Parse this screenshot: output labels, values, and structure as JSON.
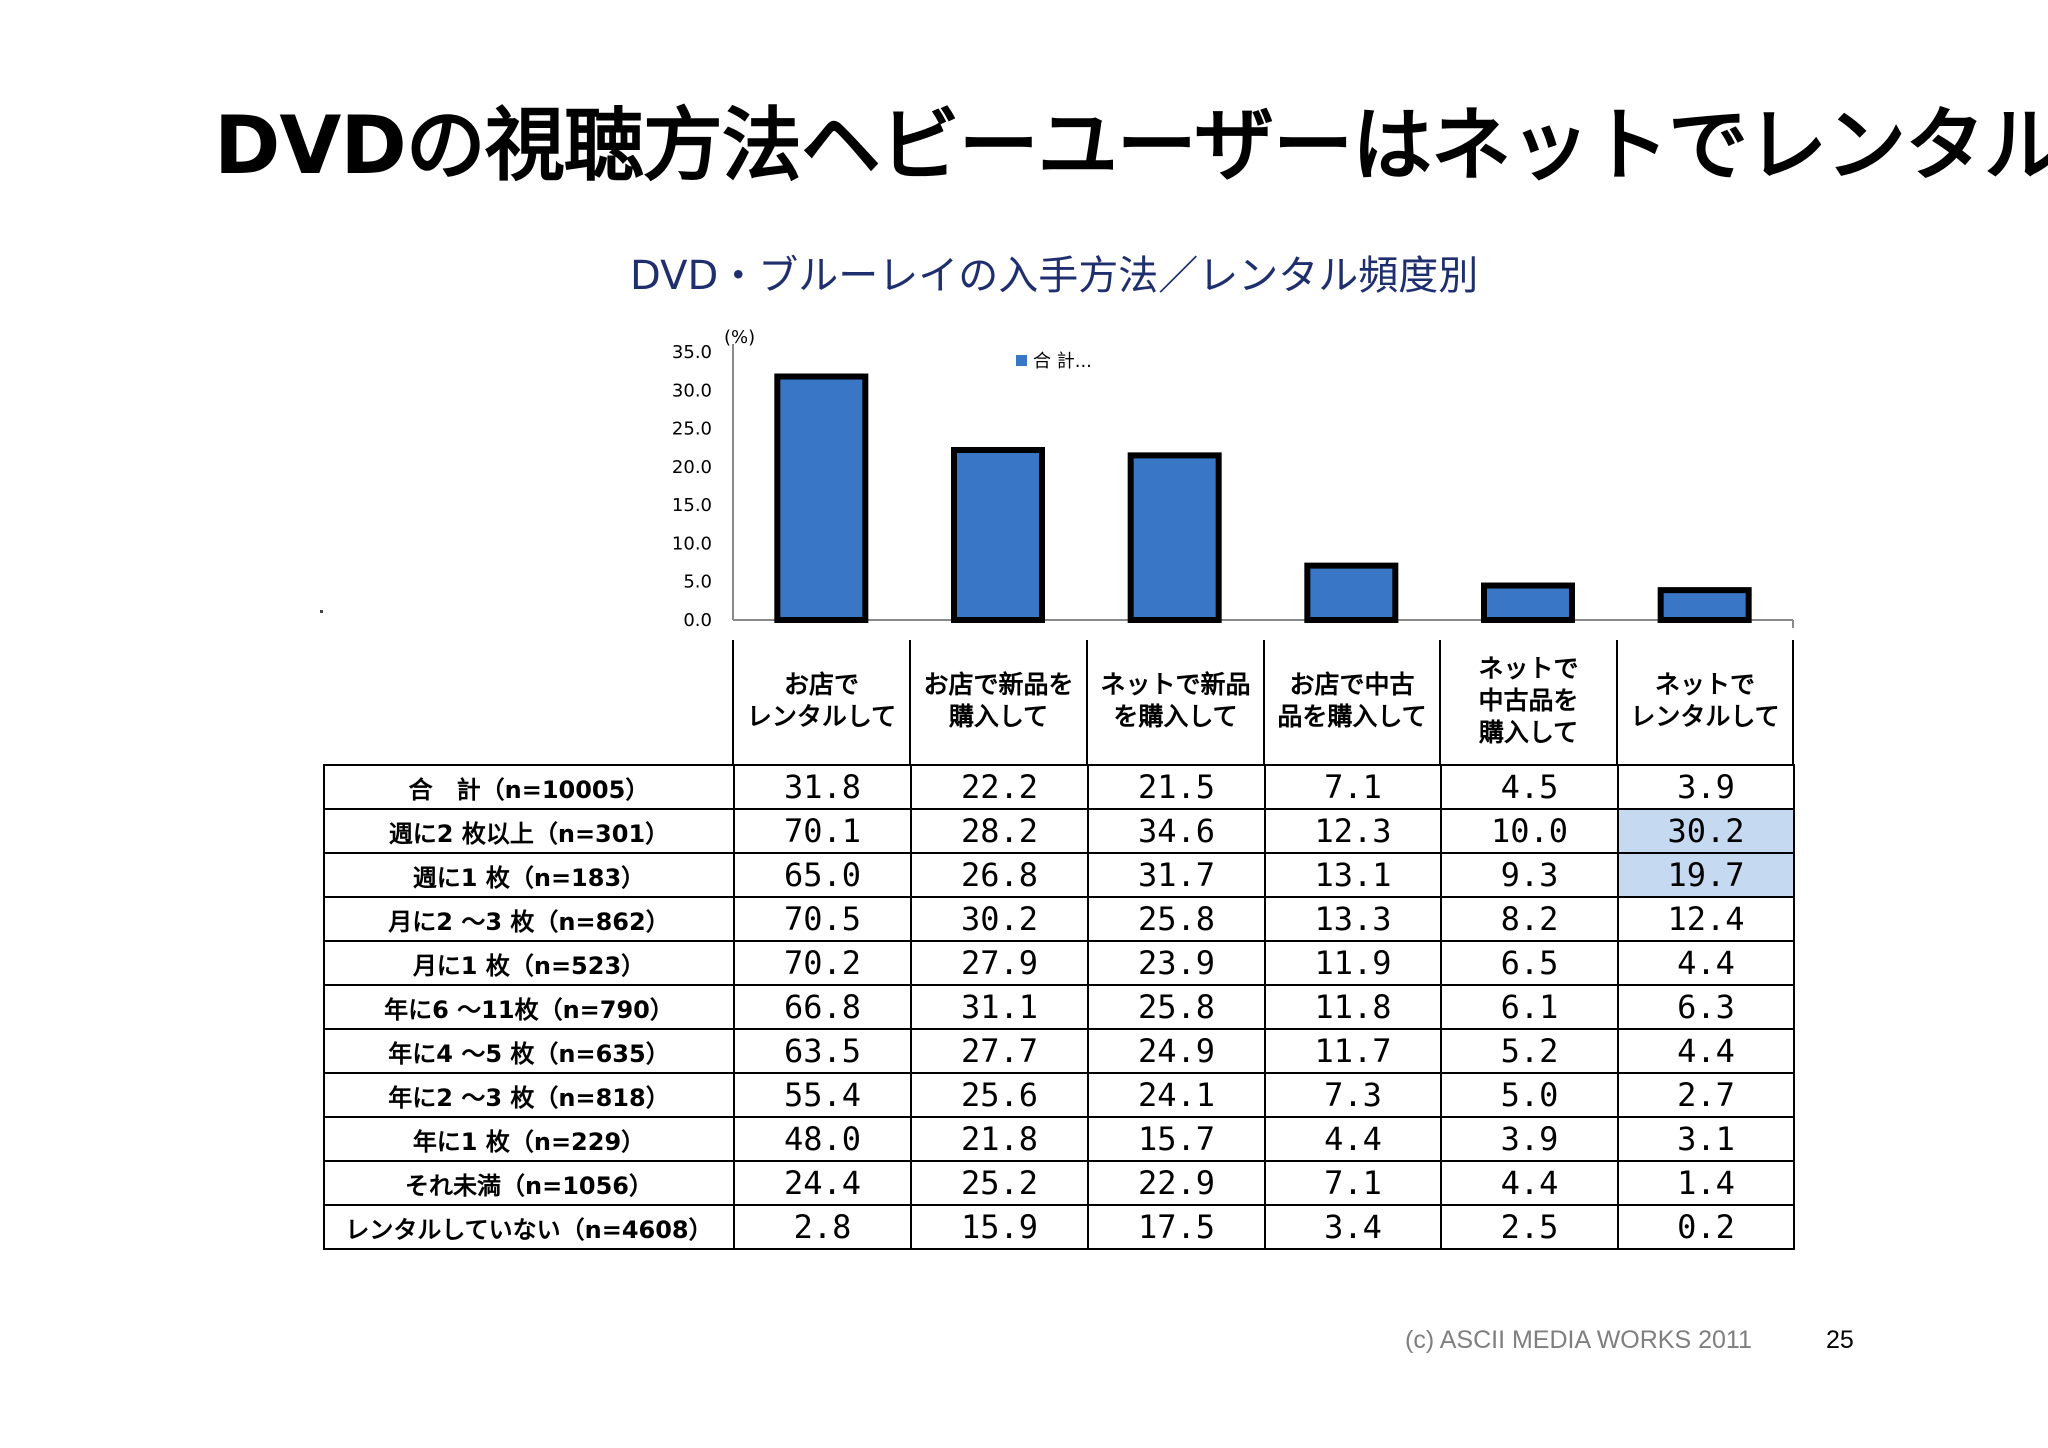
{
  "slide": {
    "title": "DVDの視聴方法ヘビーユーザーはネットでレンタル",
    "copyright": "(c) ASCII MEDIA WORKS 2011",
    "page_number": "25"
  },
  "chart_data": {
    "type": "bar",
    "title": "DVD・ブルーレイの入手方法／レンタル頻度別",
    "ylabel": "(%)",
    "ylim": [
      0,
      35
    ],
    "yticks": [
      "0.0",
      "5.0",
      "10.0",
      "15.0",
      "20.0",
      "25.0",
      "30.0",
      "35.0"
    ],
    "grid": false,
    "legend_position": "top-center",
    "categories": [
      "お店で\nレンタルして",
      "お店で新品を\n購入して",
      "ネットで新品\nを購入して",
      "お店で中古\n品を購入して",
      "ネットで\n中古品を\n購入して",
      "ネットで\nレンタルして"
    ],
    "series": [
      {
        "name": "合 計...",
        "values": [
          31.8,
          22.2,
          21.5,
          7.1,
          4.5,
          3.9
        ],
        "color": "#3a76c6"
      }
    ],
    "bar_border_color": "#000000"
  },
  "table": {
    "rows": [
      {
        "label": "合　計（n=10005）",
        "values": [
          "31.8",
          "22.2",
          "21.5",
          "7.1",
          "4.5",
          "3.9"
        ],
        "highlight": []
      },
      {
        "label": "週に2 枚以上（n=301）",
        "values": [
          "70.1",
          "28.2",
          "34.6",
          "12.3",
          "10.0",
          "30.2"
        ],
        "highlight": [
          5
        ]
      },
      {
        "label": "週に1 枚（n=183）",
        "values": [
          "65.0",
          "26.8",
          "31.7",
          "13.1",
          "9.3",
          "19.7"
        ],
        "highlight": [
          5
        ]
      },
      {
        "label": "月に2 ～3 枚（n=862）",
        "values": [
          "70.5",
          "30.2",
          "25.8",
          "13.3",
          "8.2",
          "12.4"
        ],
        "highlight": []
      },
      {
        "label": "月に1 枚（n=523）",
        "values": [
          "70.2",
          "27.9",
          "23.9",
          "11.9",
          "6.5",
          "4.4"
        ],
        "highlight": []
      },
      {
        "label": "年に6 ～11枚（n=790）",
        "values": [
          "66.8",
          "31.1",
          "25.8",
          "11.8",
          "6.1",
          "6.3"
        ],
        "highlight": []
      },
      {
        "label": "年に4 ～5 枚（n=635）",
        "values": [
          "63.5",
          "27.7",
          "24.9",
          "11.7",
          "5.2",
          "4.4"
        ],
        "highlight": []
      },
      {
        "label": "年に2 ～3 枚（n=818）",
        "values": [
          "55.4",
          "25.6",
          "24.1",
          "7.3",
          "5.0",
          "2.7"
        ],
        "highlight": []
      },
      {
        "label": "年に1 枚（n=229）",
        "values": [
          "48.0",
          "21.8",
          "15.7",
          "4.4",
          "3.9",
          "3.1"
        ],
        "highlight": []
      },
      {
        "label": "それ未満（n=1056）",
        "values": [
          "24.4",
          "25.2",
          "22.9",
          "7.1",
          "4.4",
          "1.4"
        ],
        "highlight": []
      },
      {
        "label": "レンタルしていない（n=4608）",
        "values": [
          "2.8",
          "15.9",
          "17.5",
          "3.4",
          "2.5",
          "0.2"
        ],
        "highlight": []
      }
    ],
    "highlight_color": "#c5d9f1"
  }
}
